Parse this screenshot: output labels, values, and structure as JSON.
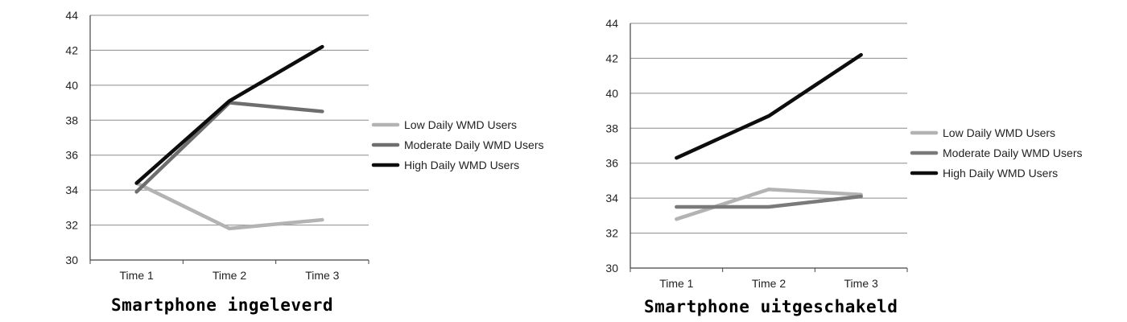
{
  "chart_data": [
    {
      "type": "line",
      "title": "Smartphone ingeleverd",
      "categories": [
        "Time 1",
        "Time 2",
        "Time 3"
      ],
      "ylim": [
        30,
        44
      ],
      "yticks": [
        30,
        32,
        34,
        36,
        38,
        40,
        42,
        44
      ],
      "grid": true,
      "legend_position": "right",
      "series": [
        {
          "name": "Low Daily WMD Users",
          "values": [
            34.4,
            31.8,
            32.3
          ],
          "color": "#b3b3b3"
        },
        {
          "name": "Moderate Daily WMD Users",
          "values": [
            33.9,
            39.0,
            38.5
          ],
          "color": "#6e6e6e"
        },
        {
          "name": "High Daily WMD Users",
          "values": [
            34.4,
            39.1,
            42.2
          ],
          "color": "#0d0d0d"
        }
      ]
    },
    {
      "type": "line",
      "title": "Smartphone uitgeschakeld",
      "categories": [
        "Time 1",
        "Time 2",
        "Time 3"
      ],
      "ylim": [
        30,
        44
      ],
      "yticks": [
        30,
        32,
        34,
        36,
        38,
        40,
        42,
        44
      ],
      "grid": true,
      "legend_position": "right",
      "series": [
        {
          "name": "Low Daily WMD Users",
          "values": [
            32.8,
            34.5,
            34.2
          ],
          "color": "#b3b3b3"
        },
        {
          "name": "Moderate Daily WMD Users",
          "values": [
            33.5,
            33.5,
            34.1
          ],
          "color": "#7a7a7a"
        },
        {
          "name": "High Daily WMD Users",
          "values": [
            36.3,
            38.7,
            42.2
          ],
          "color": "#0d0d0d"
        }
      ]
    }
  ]
}
